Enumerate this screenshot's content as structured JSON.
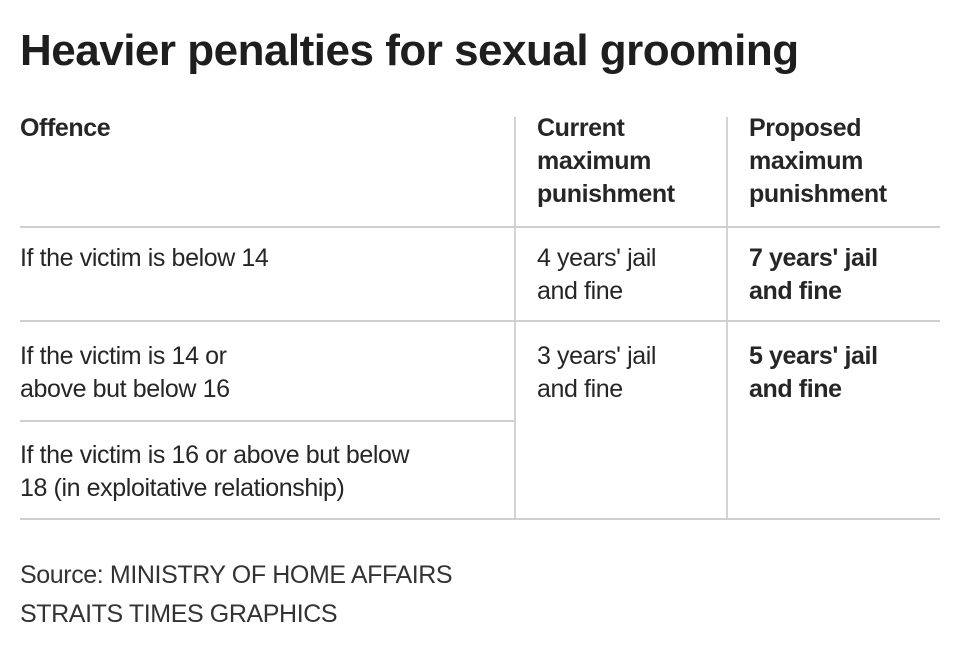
{
  "title": "Heavier penalties for sexual grooming",
  "table": {
    "headers": {
      "offence": "Offence",
      "current": [
        "Current",
        "maximum",
        "punishment"
      ],
      "proposed": [
        "Proposed",
        "maximum",
        "punishment"
      ]
    },
    "rows": [
      {
        "offence": [
          "If the victim is below 14"
        ],
        "current": [
          "4 years' jail",
          "and fine"
        ],
        "proposed": [
          "7 years' jail",
          "and fine"
        ]
      },
      {
        "offence": [
          "If the victim is 14 or",
          "above but below 16"
        ],
        "current": [
          "3 years' jail",
          "and fine"
        ],
        "proposed": [
          "5 years' jail",
          "and fine"
        ]
      },
      {
        "offence": [
          "If the victim is 16 or above but below",
          "18 (in exploitative relationship)"
        ]
      }
    ]
  },
  "footer": {
    "source": "Source: MINISTRY OF HOME AFFAIRS",
    "credit": "STRAITS TIMES GRAPHICS"
  }
}
